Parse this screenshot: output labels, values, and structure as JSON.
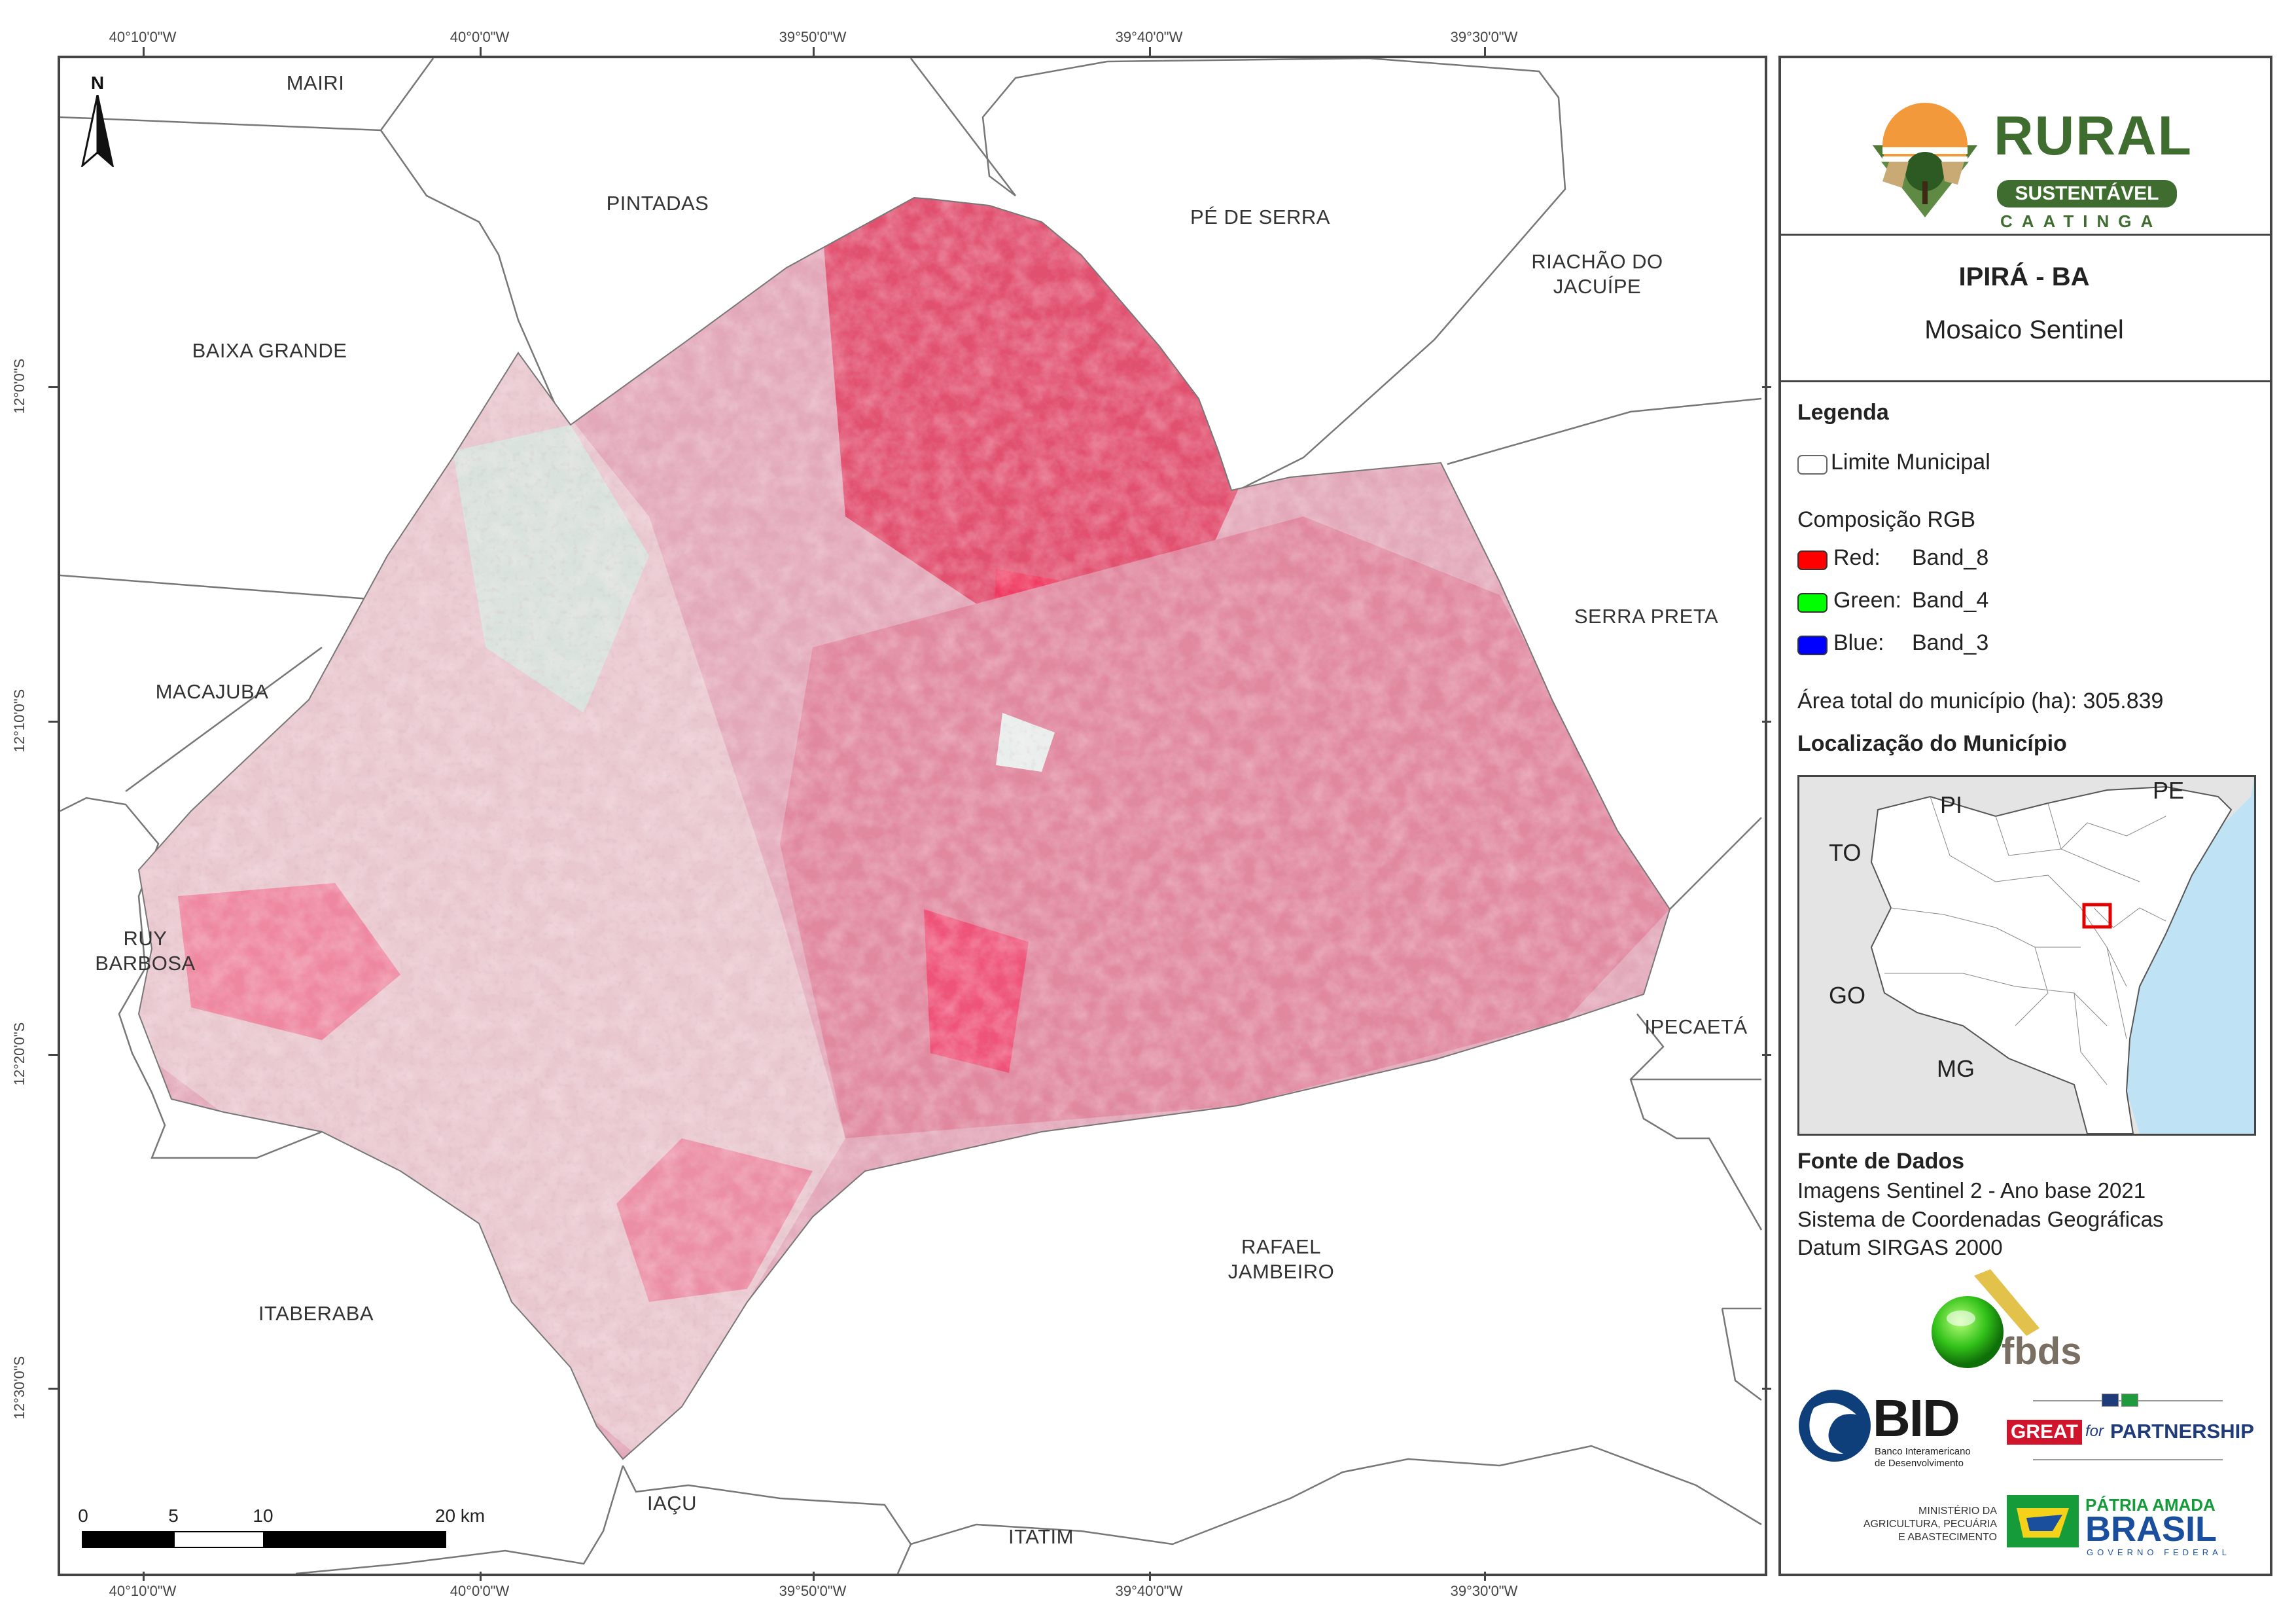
{
  "coordinates": {
    "top": [
      "40°10'0\"W",
      "40°0'0\"W",
      "39°50'0\"W",
      "39°40'0\"W",
      "39°30'0\"W"
    ],
    "bottom": [
      "40°10'0\"W",
      "40°0'0\"W",
      "39°50'0\"W",
      "39°40'0\"W",
      "39°30'0\"W"
    ],
    "left": [
      "12°0'0\"S",
      "12°10'0\"S",
      "12°20'0\"S",
      "12°30'0\"S"
    ]
  },
  "map": {
    "north_label": "N",
    "municipalities": {
      "mairi": "MAIRI",
      "pintadas": "PINTADAS",
      "pe_de_serra": "PÉ DE SERRA",
      "riachao": [
        "RIACHÃO DO",
        "JACUÍPE"
      ],
      "baixa_grande": "BAIXA GRANDE",
      "macajuba": "MACAJUBA",
      "serra_preta": "SERRA PRETA",
      "ruy_barbosa": [
        "RUY",
        "BARBOSA"
      ],
      "ipecaeta": "IPECAETÁ",
      "rafael_jambeiro": [
        "RAFAEL",
        "JAMBEIRO"
      ],
      "itaberaba": "ITABERABA",
      "iacu": "IAÇU",
      "itatim": "ITATIM"
    },
    "scale": {
      "labels": [
        "0",
        "5",
        "10",
        "20 km"
      ]
    }
  },
  "panel": {
    "logo": {
      "line1": "RURAL",
      "line2": "SUSTENTÁVEL",
      "line3": "CAATINGA"
    },
    "title": "IPIRÁ - BA",
    "subtitle": "Mosaico Sentinel",
    "legend": {
      "heading": "Legenda",
      "limit_label": "Limite Municipal",
      "rgb_heading": "Composição RGB",
      "bands": [
        {
          "channel": "Red:",
          "band": "Band_8",
          "color": "#ff0000"
        },
        {
          "channel": "Green:",
          "band": "Band_4",
          "color": "#00ff00"
        },
        {
          "channel": "Blue:",
          "band": "Band_3",
          "color": "#0000ff"
        }
      ],
      "area_text": "Área total do município (ha): 305.839"
    },
    "location": {
      "heading": "Localização do Município",
      "states": {
        "pi": "PI",
        "pe": "PE",
        "to": "TO",
        "go": "GO",
        "mg": "MG"
      }
    },
    "sources": {
      "heading": "Fonte de Dados",
      "lines": [
        "Imagens Sentinel 2 - Ano base 2021",
        "Sistema de Coordenadas Geográficas",
        "Datum SIRGAS 2000"
      ]
    },
    "sponsors": {
      "fbds": "fbds",
      "bid": "BID",
      "bid_sub": [
        "Banco Interamericano",
        "de Desenvolvimento"
      ],
      "great": "GREAT",
      "great_for": "for",
      "partnership": "PARTNERSHIP",
      "ministerio": [
        "MINISTÉRIO DA",
        "AGRICULTURA, PECUÁRIA",
        "E ABASTECIMENTO"
      ],
      "patria": "PÁTRIA AMADA",
      "brasil": "BRASIL",
      "governo": "GOVERNO FEDERAL"
    }
  }
}
